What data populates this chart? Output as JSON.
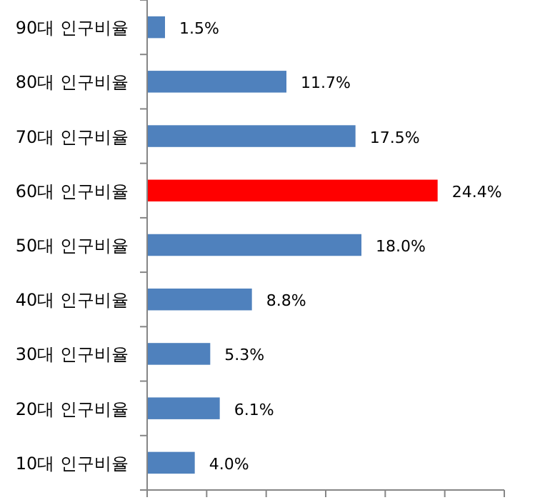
{
  "chart_data": {
    "type": "bar",
    "orientation": "horizontal",
    "categories": [
      "90대 인구비율",
      "80대 인구비율",
      "70대 인구비율",
      "60대 인구비율",
      "50대 인구비율",
      "40대 인구비율",
      "30대 인구비율",
      "20대 인구비율",
      "10대 인구비율"
    ],
    "values": [
      1.5,
      11.7,
      17.5,
      24.4,
      18.0,
      8.8,
      5.3,
      6.1,
      4.0
    ],
    "colors": [
      "#4f81bd",
      "#4f81bd",
      "#4f81bd",
      "#ff0000",
      "#4f81bd",
      "#4f81bd",
      "#4f81bd",
      "#4f81bd",
      "#4f81bd"
    ],
    "value_labels": [
      "1.5%",
      "11.7%",
      "17.5%",
      "24.4%",
      "18.0%",
      "8.8%",
      "5.3%",
      "6.1%",
      "4.0%"
    ],
    "xlim": [
      0,
      30
    ],
    "xticks": [
      {
        "value": 0,
        "label": null
      },
      {
        "value": 5,
        "label": null
      },
      {
        "value": 10,
        "label": null
      },
      {
        "value": 15,
        "label": null
      },
      {
        "value": 20,
        "label": null
      },
      {
        "value": 25,
        "label": null
      },
      {
        "value": 30,
        "label": null
      }
    ],
    "tick_labels": "y"
  }
}
